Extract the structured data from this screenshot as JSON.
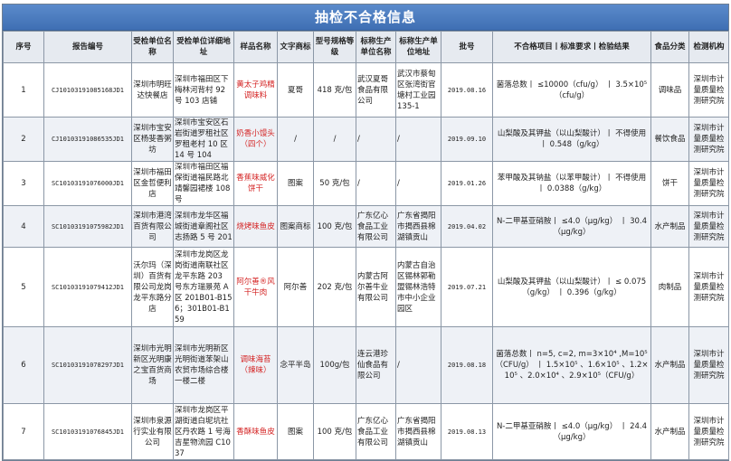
{
  "title": "抽检不合格信息",
  "columns": [
    "序号",
    "报告编号",
    "受检单位名称",
    "受检单位详细地址",
    "样品名称",
    "文字商标",
    "型号规格等级",
    "标称生产单位名称",
    "标称生产单位地址",
    "批号",
    "不合格项目丨标准要求丨检验结果",
    "食品分类",
    "检测机构"
  ],
  "rows": [
    [
      "1",
      "CJ10103191085168JD1",
      "深圳市明旺达快餐店",
      "深圳市福田区下梅林河背村 92 号 103 店铺",
      "黄太子鸡精调味料",
      "夏哥",
      "418 克/包",
      "武汉夏哥食品有限公司",
      "武汉市蔡甸区张湾街官塘村工业园 135-1",
      "2019.08.16",
      "菌落总数丨 ≤10000（cfu/g） 丨 3.5×10⁵（cfu/g）",
      "调味品",
      "深圳市计量质量检测研究院"
    ],
    [
      "2",
      "CJ10103191086535JD1",
      "深圳市宝安区杨斐香粥坊",
      "深圳市宝安区石岩街道罗租社区罗租老村 10 区 14 号 104",
      "奶香小馒头（四个）",
      "/",
      "/",
      "/",
      "/",
      "2019.09.10",
      "山梨酸及其钾盐（以山梨酸计）丨 不得使用 丨 0.548（g/kg）",
      "餐饮食品",
      "深圳市计量质量检测研究院"
    ],
    [
      "3",
      "SC10103191076000JD1",
      "深圳市福田区金哲便利店",
      "深圳市福田区福保街道福民路北靖馨园裙楼 108 号",
      "香蕉味威化饼干",
      "图案",
      "50 克/包",
      "/",
      "/",
      "2019.01.26",
      "苯甲酸及其钠盐（以苯甲酸计）丨 不得使用 丨 0.0388（g/kg）",
      "饼干",
      "深圳市计量质量检测研究院"
    ],
    [
      "4",
      "SC10103191075982JD1",
      "深圳市港湾百货有限公司",
      "深圳市龙华区福城街道章阁社区志扬路 5 号 201",
      "烧烤味鱼皮",
      "图案商标",
      "100 克/包",
      "广东亿心食品工业有限公司",
      "广东省揭阳市揭西县棉湖镇贡山",
      "2019.04.02",
      "N-二甲基亚硝胺丨 ≤4.0（μg/kg） 丨 30.4（μg/kg）",
      "水产制品",
      "深圳市计量质量检测研究院"
    ],
    [
      "5",
      "SC10103191079412JD1",
      "沃尔玛（深圳）百货有限公司龙岗龙平东路分店",
      "深圳市龙岗区龙岗街道南联社区龙平东路 203 号东方瑞景苑 A 区 201B01-B156；301B01-B159",
      "阿尔善®风干牛肉",
      "阿尔善",
      "202 克/包",
      "内蒙古阿尔善牛业有限公司",
      "内蒙古自治区锡林郭勒盟锡林浩特市中小企业园区",
      "2019.07.21",
      "山梨酸及其钾盐（以山梨酸计）丨 ≤ 0.075（g/kg） 丨 0.396（g/kg）",
      "肉制品",
      "深圳市计量质量检测研究院"
    ],
    [
      "6",
      "SC10103191078297JD1",
      "深圳市光明新区光明康之宝百货商场",
      "深圳市光明新区光明街道苯架山农贸市场综合楼一楼二楼",
      "调味海苔（辣味）",
      "念平半岛",
      "100g/包",
      "连云港珍仙食品有限公司",
      "/",
      "2019.08.18",
      "菌落总数丨 n=5, c=2, m=3×10⁴ ,M=10⁵（CFU/g） 丨 1.5×10⁵ 、1.6×10⁵ 、1.2×10⁵ 、2.0×10⁴ 、2.9×10⁵（CFU/g）",
      "水产制品",
      "深圳市计量质量检测研究院"
    ],
    [
      "7",
      "SC10103191076845JD1",
      "深圳市泉源行实业有限公司",
      "深圳市龙岗区平湖街道白坭坑社区丹农路 1 号海吉星物流园 C1037",
      "香酥味鱼皮",
      "图案",
      "100 克/包",
      "广东亿心食品工业有限公司",
      "广东省揭阳市揭西县棉湖镇贡山",
      "2019.08.13",
      "N-二甲基亚硝胺丨 ≤4.0（μg/kg） 丨 24.4（μg/kg）",
      "水产制品",
      "深圳市计量质量检测研究院"
    ]
  ],
  "colors": {
    "title_bar": "#4a7cc1",
    "header_bg": "#e6eaf0",
    "sample_name": "#d42424",
    "alt_row": "#eef1f6"
  }
}
